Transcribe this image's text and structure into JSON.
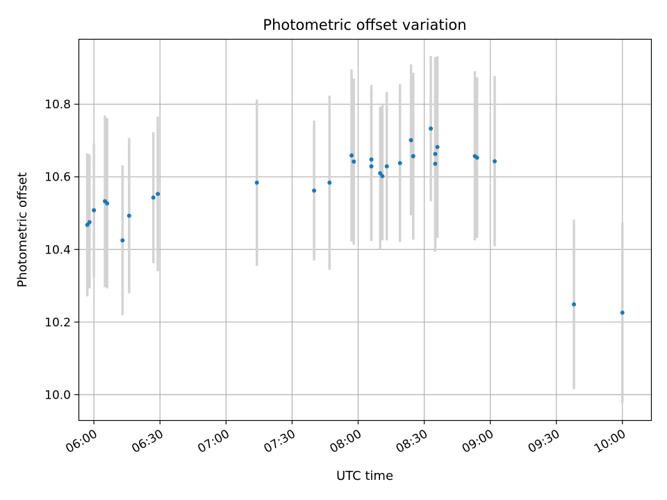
{
  "chart_data": {
    "type": "scatter",
    "title": "Photometric offset variation",
    "xlabel": "UTC time",
    "ylabel": "Photometric offset",
    "xlim": [
      "05:53",
      "10:13"
    ],
    "ylim": [
      9.93,
      10.98
    ],
    "grid": true,
    "x_ticks": [
      "06:00",
      "06:30",
      "07:00",
      "07:30",
      "08:00",
      "08:30",
      "09:00",
      "09:30",
      "10:00"
    ],
    "y_ticks": [
      "10.0",
      "10.2",
      "10.4",
      "10.6",
      "10.8"
    ],
    "colors": {
      "point": "#1f77b4",
      "errorbar": "#d3d3d3",
      "grid": "#b0b0b0"
    },
    "series": [
      {
        "points": [
          {
            "x": "05:57",
            "y": 10.468,
            "lo": 10.271,
            "hi": 10.665
          },
          {
            "x": "05:58",
            "y": 10.475,
            "lo": 10.293,
            "hi": 10.662
          },
          {
            "x": "06:00",
            "y": 10.508,
            "lo": 10.323,
            "hi": 10.692
          },
          {
            "x": "06:05",
            "y": 10.533,
            "lo": 10.296,
            "hi": 10.769
          },
          {
            "x": "06:06",
            "y": 10.527,
            "lo": 10.293,
            "hi": 10.762
          },
          {
            "x": "06:13",
            "y": 10.425,
            "lo": 10.219,
            "hi": 10.632
          },
          {
            "x": "06:16",
            "y": 10.493,
            "lo": 10.279,
            "hi": 10.707
          },
          {
            "x": "06:27",
            "y": 10.543,
            "lo": 10.362,
            "hi": 10.723
          },
          {
            "x": "06:29",
            "y": 10.553,
            "lo": 10.34,
            "hi": 10.766
          },
          {
            "x": "07:14",
            "y": 10.584,
            "lo": 10.355,
            "hi": 10.813
          },
          {
            "x": "07:40",
            "y": 10.562,
            "lo": 10.37,
            "hi": 10.755
          },
          {
            "x": "07:47",
            "y": 10.584,
            "lo": 10.344,
            "hi": 10.824
          },
          {
            "x": "07:57",
            "y": 10.659,
            "lo": 10.422,
            "hi": 10.896
          },
          {
            "x": "07:58",
            "y": 10.642,
            "lo": 10.413,
            "hi": 10.871
          },
          {
            "x": "08:06",
            "y": 10.648,
            "lo": 10.423,
            "hi": 10.853
          },
          {
            "x": "08:06",
            "y": 10.629,
            "lo": 10.425,
            "hi": 10.832
          },
          {
            "x": "08:10",
            "y": 10.61,
            "lo": 10.4,
            "hi": 10.793
          },
          {
            "x": "08:11",
            "y": 10.602,
            "lo": 10.425,
            "hi": 10.798
          },
          {
            "x": "08:13",
            "y": 10.629,
            "lo": 10.425,
            "hi": 10.834
          },
          {
            "x": "08:19",
            "y": 10.638,
            "lo": 10.421,
            "hi": 10.856
          },
          {
            "x": "08:24",
            "y": 10.701,
            "lo": 10.494,
            "hi": 10.91
          },
          {
            "x": "08:25",
            "y": 10.657,
            "lo": 10.427,
            "hi": 10.887
          },
          {
            "x": "08:25",
            "y": 10.657,
            "lo": 10.43,
            "hi": 10.885
          },
          {
            "x": "08:33",
            "y": 10.733,
            "lo": 10.533,
            "hi": 10.933
          },
          {
            "x": "08:35",
            "y": 10.663,
            "lo": 10.394,
            "hi": 10.93
          },
          {
            "x": "08:35",
            "y": 10.636,
            "lo": 10.41,
            "hi": 10.908
          },
          {
            "x": "08:36",
            "y": 10.682,
            "lo": 10.432,
            "hi": 10.932
          },
          {
            "x": "08:53",
            "y": 10.657,
            "lo": 10.425,
            "hi": 10.891
          },
          {
            "x": "08:54",
            "y": 10.653,
            "lo": 10.432,
            "hi": 10.874
          },
          {
            "x": "09:02",
            "y": 10.643,
            "lo": 10.409,
            "hi": 10.878
          },
          {
            "x": "09:38",
            "y": 10.249,
            "lo": 10.015,
            "hi": 10.482
          },
          {
            "x": "10:00",
            "y": 10.226,
            "lo": 9.977,
            "hi": 10.474
          }
        ]
      }
    ]
  }
}
